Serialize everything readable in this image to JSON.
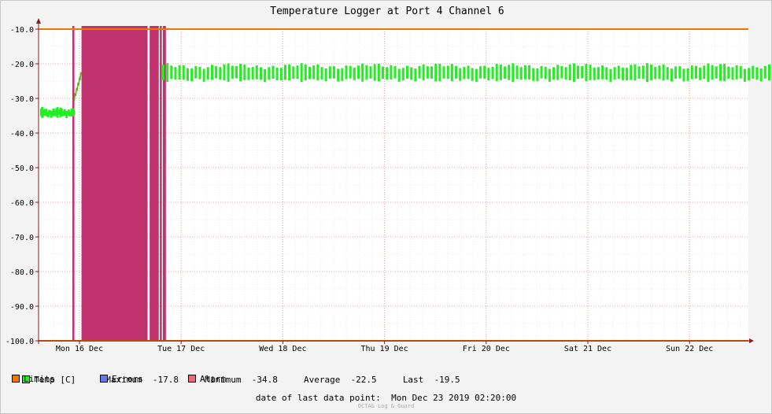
{
  "chart_data": {
    "type": "line",
    "title": "Temperature Logger at Port 4 Channel 6",
    "ylim": [
      -100,
      -10
    ],
    "yticks": [
      "-10.0",
      "-20.0",
      "-30.0",
      "-40.0",
      "-50.0",
      "-60.0",
      "-70.0",
      "-80.0",
      "-90.0",
      "-100.0"
    ],
    "ytick_values": [
      -10,
      -20,
      -30,
      -40,
      -50,
      -60,
      -70,
      -80,
      -90,
      -100
    ],
    "xlim_days": [
      0,
      7.55
    ],
    "x_categories": [
      "Mon 16 Dec",
      "Tue 17 Dec",
      "Wed 18 Dec",
      "Thu 19 Dec",
      "Fri 20 Dec",
      "Sat 21 Dec",
      "Sun 22 Dec"
    ],
    "x_category_positions_days": [
      0,
      1,
      2,
      3,
      4,
      5,
      6
    ],
    "grid": true,
    "limits": [
      -10,
      -100
    ],
    "alarm_bands_days": [
      [
        -0.07,
        -0.05
      ],
      [
        0.02,
        0.67
      ],
      [
        0.69,
        0.78
      ],
      [
        0.79,
        0.81
      ],
      [
        0.82,
        0.85
      ]
    ],
    "series": [
      {
        "name": "Temp [C]",
        "color": "#00ee00",
        "segments": [
          {
            "start": -0.38,
            "end": -0.05,
            "base": -33.8,
            "amp": 0.8,
            "period": 0.01
          },
          {
            "start": -0.05,
            "end": 0.02,
            "ramp_from": -30.0,
            "ramp_to": -22.5
          },
          {
            "start": 0.82,
            "end": 7.48,
            "base": -22.0,
            "amp": 2.2,
            "period": 0.04
          }
        ]
      }
    ],
    "stats": {
      "maximum": "-17.8",
      "minimum": "-34.8",
      "average": "-22.5",
      "last": "-19.5"
    }
  },
  "legend": {
    "temp": "Temp [C]",
    "maximum_label": "Maximum",
    "maximum_value": "-17.8",
    "minimum_label": "Minimum",
    "minimum_value": "-34.8",
    "average_label": "Average",
    "average_value": "-22.5",
    "last_label": "Last",
    "last_value": "-19.5",
    "limits": "Limits",
    "errors": "Errors",
    "alarm": "Alarm"
  },
  "colors": {
    "temp": "#22ee22",
    "limits": "#ee7700",
    "errors": "#6677ee",
    "alarm": "#ee6677",
    "alarm_band": "#c0336f",
    "axis": "#8b1a1a",
    "grid": "#e8a0a0"
  },
  "footer": {
    "last_data_label": "date of last data point:",
    "last_data_value": "Mon Dec 23 2019 02:20:00",
    "watermark": "OCTA& Log & Guard"
  }
}
